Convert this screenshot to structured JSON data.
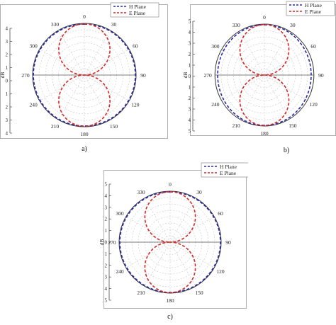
{
  "chart_data": [
    {
      "type": "polar-line",
      "panel_label": "a)",
      "angular_ticks": [
        "0",
        "30",
        "60",
        "90",
        "120",
        "150",
        "180",
        "210",
        "240",
        "270",
        "300",
        "330"
      ],
      "radial_axis_label": "dB",
      "radial_ticks_upper": [
        "4",
        "3",
        "2",
        "1",
        "0"
      ],
      "radial_ticks_lower": [
        "1",
        "2",
        "3",
        "4"
      ],
      "radial_max": 4,
      "legend_placement": "top-right",
      "series": [
        {
          "name": "H Plane",
          "color": "#2a2aa6",
          "style": "dashed",
          "pattern": "circle",
          "radius": 4
        },
        {
          "name": "E Plane",
          "color": "#d42a2a",
          "style": "dashed",
          "pattern": "figure-eight",
          "peak": 4,
          "peak_angles": [
            0,
            180
          ],
          "null_angles": [
            90,
            270
          ]
        }
      ]
    },
    {
      "type": "polar-line",
      "panel_label": "b)",
      "angular_ticks": [
        "0",
        "30",
        "60",
        "90",
        "120",
        "150",
        "180",
        "210",
        "240",
        "270",
        "300",
        "330"
      ],
      "radial_axis_label": "dB",
      "radial_ticks_upper": [
        "5",
        "4",
        "3",
        "2",
        "1",
        "0"
      ],
      "radial_ticks_lower": [
        "1",
        "2",
        "3",
        "4",
        "5"
      ],
      "radial_max": 5,
      "legend_placement": "top-right",
      "series": [
        {
          "name": "H Plane",
          "color": "#2a2aa6",
          "style": "dashed",
          "pattern": "ellipse",
          "radius": 5
        },
        {
          "name": "E Plane",
          "color": "#d42a2a",
          "style": "dashed",
          "pattern": "figure-eight",
          "peak": 5,
          "peak_angles": [
            0,
            180
          ],
          "null_angles": [
            90,
            270
          ]
        }
      ]
    },
    {
      "type": "polar-line",
      "panel_label": "c)",
      "angular_ticks": [
        "0",
        "30",
        "60",
        "90",
        "120",
        "150",
        "180",
        "210",
        "240",
        "270",
        "300",
        "330"
      ],
      "radial_axis_label": "dB",
      "radial_ticks_upper": [
        "5",
        "4",
        "3",
        "2",
        "1",
        "0"
      ],
      "radial_ticks_lower": [
        "1",
        "2",
        "3",
        "4",
        "5"
      ],
      "radial_max": 5,
      "legend_placement": "top-right",
      "series": [
        {
          "name": "H Plane",
          "color": "#2a2aa6",
          "style": "dashed",
          "pattern": "circle",
          "radius": 5
        },
        {
          "name": "E Plane",
          "color": "#d42a2a",
          "style": "dashed",
          "pattern": "figure-eight",
          "peak": 5,
          "peak_angles": [
            0,
            180
          ],
          "null_angles": [
            90,
            270
          ]
        }
      ]
    }
  ]
}
